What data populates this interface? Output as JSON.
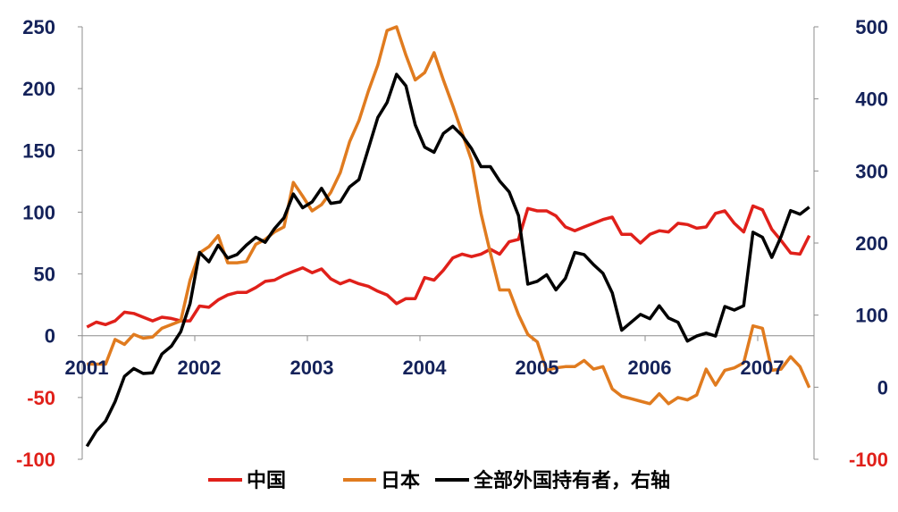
{
  "chart_data": {
    "type": "line",
    "title": "",
    "x_start": 2001,
    "x_frequency": "monthly",
    "x_ticks": [
      "2001",
      "2002",
      "2003",
      "2004",
      "2005",
      "2006",
      "2007"
    ],
    "xlim": [
      2001,
      2007.5
    ],
    "left_axis": {
      "ylim": [
        -100,
        250
      ],
      "ticks": [
        "-100",
        "-50",
        "0",
        "50",
        "100",
        "150",
        "200",
        "250"
      ]
    },
    "right_axis": {
      "ylim": [
        -100,
        500
      ],
      "ticks": [
        "-100",
        "0",
        "100",
        "200",
        "300",
        "400",
        "500"
      ]
    },
    "grid": false,
    "legend_position": "bottom",
    "colors": {
      "axis_text": "#14225a",
      "negative_text": "#e0201a",
      "axis_line": "#8c8c8c"
    },
    "series": [
      {
        "name": "中国",
        "axis": "left",
        "color": "#e0201a",
        "values": [
          7,
          11,
          9,
          12,
          19,
          18,
          15,
          12,
          15,
          14,
          12,
          12,
          24,
          23,
          29,
          33,
          35,
          35,
          39,
          44,
          45,
          49,
          52,
          55,
          51,
          54,
          46,
          42,
          45,
          42,
          40,
          36,
          33,
          26,
          30,
          30,
          47,
          45,
          53,
          63,
          66,
          64,
          66,
          70,
          66,
          76,
          78,
          103,
          101,
          101,
          97,
          88,
          85,
          88,
          91,
          94,
          96,
          82,
          82,
          75,
          82,
          85,
          84,
          91,
          90,
          87,
          88,
          99,
          101,
          91,
          84,
          105,
          102,
          86,
          77,
          67,
          66,
          81
        ]
      },
      {
        "name": "日本",
        "axis": "left",
        "color": "#e07b1f",
        "values": [
          -23,
          -23,
          -23,
          -3,
          -7,
          1,
          -2,
          -1,
          6,
          9,
          12,
          45,
          67,
          72,
          81,
          59,
          59,
          60,
          74,
          78,
          84,
          88,
          124,
          113,
          101,
          106,
          116,
          132,
          157,
          174,
          198,
          219,
          247,
          250,
          227,
          207,
          213,
          229,
          207,
          186,
          164,
          142,
          99,
          67,
          37,
          37,
          17,
          1,
          -5,
          -28,
          -26,
          -25,
          -25,
          -20,
          -27,
          -25,
          -43,
          -49,
          -51,
          -53,
          -55,
          -47,
          -55,
          -50,
          -52,
          -48,
          -27,
          -40,
          -28,
          -26,
          -22,
          8,
          6,
          -28,
          -27,
          -17,
          -25,
          -42
        ]
      },
      {
        "name": "全部外国持有者，右轴",
        "axis": "right",
        "color": "#000000",
        "values": [
          -82,
          -61,
          -47,
          -20,
          15,
          26,
          19,
          20,
          46,
          57,
          77,
          116,
          187,
          174,
          197,
          179,
          184,
          197,
          208,
          201,
          220,
          235,
          268,
          249,
          257,
          276,
          255,
          257,
          278,
          288,
          331,
          374,
          395,
          434,
          418,
          364,
          333,
          326,
          352,
          362,
          349,
          331,
          306,
          306,
          286,
          271,
          238,
          143,
          147,
          156,
          135,
          151,
          187,
          184,
          170,
          158,
          131,
          79,
          90,
          101,
          95,
          113,
          96,
          90,
          64,
          71,
          75,
          71,
          112,
          107,
          113,
          215,
          208,
          180,
          209,
          245,
          240,
          250
        ]
      }
    ]
  }
}
